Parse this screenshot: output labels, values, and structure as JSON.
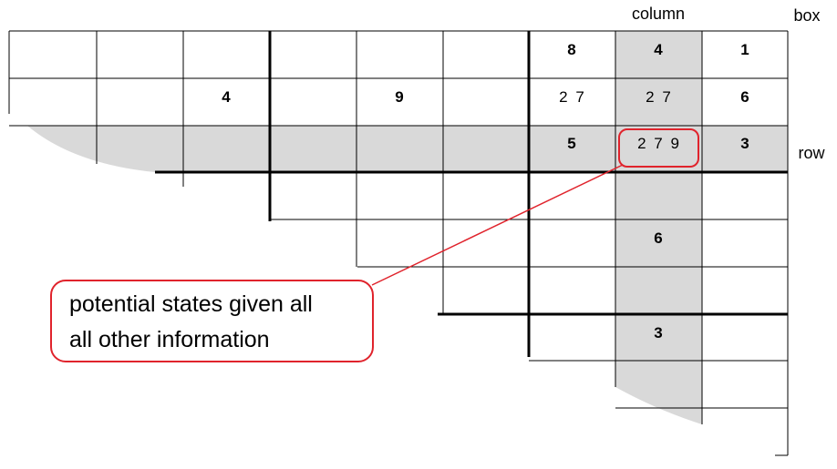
{
  "labels": {
    "column": "column",
    "box": "box",
    "row": "row"
  },
  "callout": {
    "line1": "potential states given all",
    "line2": "all other information"
  },
  "cells": {
    "r1c7": "8",
    "r1c8": "4",
    "r1c9": "1",
    "r2c3": "4",
    "r2c5": "9",
    "r2c7": "2 7",
    "r2c8": "2 7",
    "r2c9": "6",
    "r3c7": "5",
    "r3c8": "2 7 9",
    "r3c9": "3",
    "r5c8": "6",
    "r7c8": "3"
  },
  "colors": {
    "grid": "#000000",
    "shade": "#d9d9d9",
    "callout_border": "#e0232c",
    "callout_line": "#e0232c"
  }
}
